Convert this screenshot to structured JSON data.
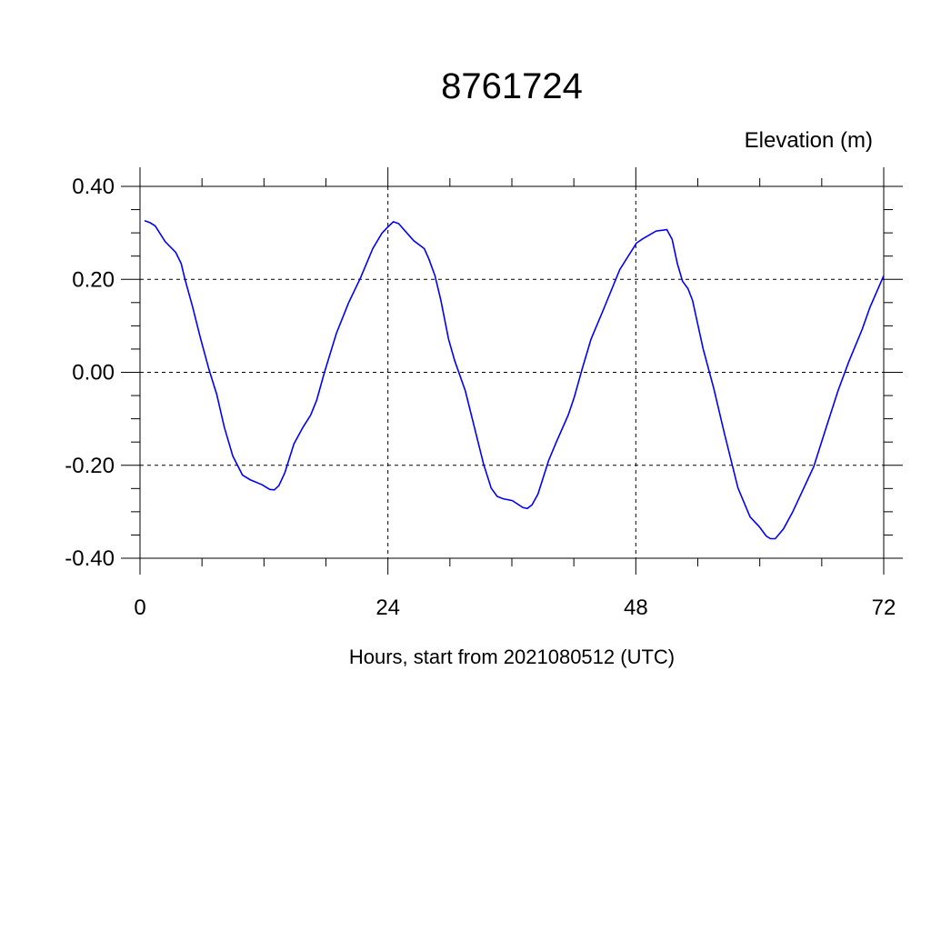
{
  "chart_data": {
    "type": "line",
    "title": "8761724",
    "ylabel": "Elevation (m)",
    "xlabel": "Hours, start from 2021080512 (UTC)",
    "xlim": [
      0,
      72
    ],
    "ylim": [
      -0.4,
      0.4
    ],
    "x_ticks": [
      0,
      24,
      48,
      72
    ],
    "x_tick_labels": [
      "0",
      "24",
      "48",
      "72"
    ],
    "y_ticks": [
      0.4,
      0.2,
      0.0,
      -0.2,
      -0.4
    ],
    "y_tick_labels": [
      "0.40",
      "0.20",
      "0.00",
      "-0.20",
      "-0.40"
    ],
    "x_minor_step": 6,
    "y_minor_step": 0.05,
    "grid": true,
    "line_color": "#0000ff",
    "series": [
      {
        "x": [
          0.44,
          0.97,
          1.47,
          2.44,
          3.46,
          3.99,
          4.34,
          5.08,
          5.81,
          6.69,
          7.42,
          8.16,
          8.98,
          9.92,
          10.65,
          11.82,
          12.56,
          13.0,
          13.44,
          14.02,
          14.9,
          15.78,
          16.52,
          17.1,
          17.84,
          19.01,
          20.18,
          21.36,
          22.53,
          23.41,
          24.0,
          24.53,
          25.03,
          26.06,
          26.5,
          27.52,
          27.96,
          28.55,
          29.13,
          29.87,
          30.46,
          31.49,
          32.22,
          33.25,
          33.99,
          34.57,
          35.16,
          36.04,
          37.07,
          37.5,
          37.95,
          38.53,
          39.56,
          40.29,
          41.46,
          42.05,
          42.78,
          43.66,
          44.83,
          46.45,
          48.06,
          48.65,
          49.97,
          50.7,
          51.0,
          51.52,
          52.02,
          52.52,
          53.05,
          53.49,
          54.51,
          55.54,
          56.57,
          57.89,
          59.06,
          59.94,
          60.62,
          61.03,
          61.5,
          62.29,
          63.17,
          64.05,
          65.22,
          66.25,
          67.57,
          68.6,
          69.92,
          70.65,
          72.0
        ],
        "y": [
          0.326,
          0.322,
          0.315,
          0.281,
          0.258,
          0.234,
          0.201,
          0.142,
          0.077,
          0.005,
          -0.047,
          -0.118,
          -0.18,
          -0.221,
          -0.231,
          -0.242,
          -0.252,
          -0.253,
          -0.244,
          -0.216,
          -0.154,
          -0.118,
          -0.092,
          -0.06,
          -0.001,
          0.084,
          0.149,
          0.204,
          0.266,
          0.299,
          0.313,
          0.324,
          0.32,
          0.294,
          0.283,
          0.266,
          0.244,
          0.208,
          0.155,
          0.071,
          0.025,
          -0.04,
          -0.105,
          -0.197,
          -0.249,
          -0.267,
          -0.272,
          -0.276,
          -0.291,
          -0.293,
          -0.285,
          -0.262,
          -0.19,
          -0.151,
          -0.092,
          -0.053,
          0.005,
          0.071,
          0.133,
          0.221,
          0.278,
          0.287,
          0.304,
          0.306,
          0.307,
          0.286,
          0.234,
          0.196,
          0.18,
          0.155,
          0.051,
          -0.034,
          -0.131,
          -0.249,
          -0.311,
          -0.332,
          -0.352,
          -0.358,
          -0.358,
          -0.337,
          -0.301,
          -0.259,
          -0.203,
          -0.131,
          -0.04,
          0.022,
          0.093,
          0.139,
          0.208
        ]
      }
    ]
  }
}
